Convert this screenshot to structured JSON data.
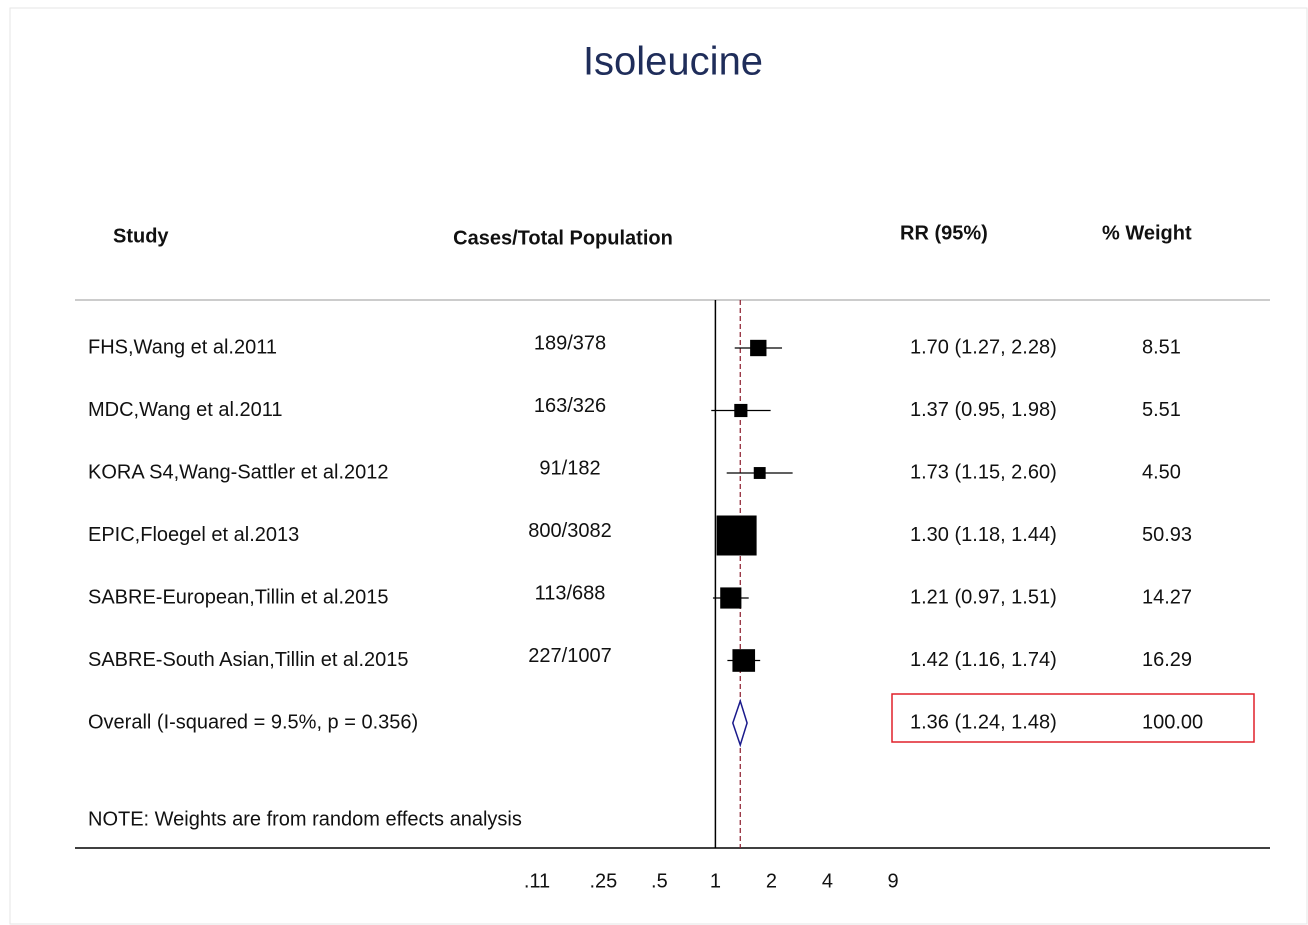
{
  "chart_data": {
    "type": "forest",
    "title": "Isoleucine",
    "headers": {
      "study": "Study",
      "cases": "Cases/Total Population",
      "rr": "RR (95%)",
      "weight": "% Weight"
    },
    "rows": [
      {
        "study": "FHS,Wang et al.2011",
        "cases": "189/378",
        "rr": 1.7,
        "ci": [
          1.27,
          2.28
        ],
        "rr_label": "1.70 (1.27, 2.28)",
        "weight": 8.51,
        "weight_label": "8.51"
      },
      {
        "study": "MDC,Wang et al.2011",
        "cases": "163/326",
        "rr": 1.37,
        "ci": [
          0.95,
          1.98
        ],
        "rr_label": "1.37 (0.95, 1.98)",
        "weight": 5.51,
        "weight_label": "5.51"
      },
      {
        "study": "KORA S4,Wang-Sattler et al.2012",
        "cases": "91/182",
        "rr": 1.73,
        "ci": [
          1.15,
          2.6
        ],
        "rr_label": "1.73 (1.15, 2.60)",
        "weight": 4.5,
        "weight_label": "4.50"
      },
      {
        "study": "EPIC,Floegel et al.2013",
        "cases": "800/3082",
        "rr": 1.3,
        "ci": [
          1.18,
          1.44
        ],
        "rr_label": "1.30 (1.18, 1.44)",
        "weight": 50.93,
        "weight_label": "50.93"
      },
      {
        "study": "SABRE-European,Tillin et al.2015",
        "cases": "113/688",
        "rr": 1.21,
        "ci": [
          0.97,
          1.51
        ],
        "rr_label": "1.21 (0.97, 1.51)",
        "weight": 14.27,
        "weight_label": "14.27"
      },
      {
        "study": "SABRE-South Asian,Tillin et al.2015",
        "cases": "227/1007",
        "rr": 1.42,
        "ci": [
          1.16,
          1.74
        ],
        "rr_label": "1.42 (1.16, 1.74)",
        "weight": 16.29,
        "weight_label": "16.29"
      }
    ],
    "overall": {
      "study": "Overall  (I-squared = 9.5%, p = 0.356)",
      "rr": 1.36,
      "ci": [
        1.24,
        1.48
      ],
      "rr_label": "1.36 (1.24, 1.48)",
      "weight": 100,
      "weight_label": "100.00"
    },
    "note": "NOTE: Weights are from random effects analysis",
    "log_scale": true,
    "xlim": [
      0.11,
      9
    ],
    "xticks": [
      {
        "value": 0.11,
        "label": ".11"
      },
      {
        "value": 0.25,
        "label": ".25"
      },
      {
        "value": 0.5,
        "label": ".5"
      },
      1,
      2,
      4,
      9
    ],
    "null_line": 1
  }
}
